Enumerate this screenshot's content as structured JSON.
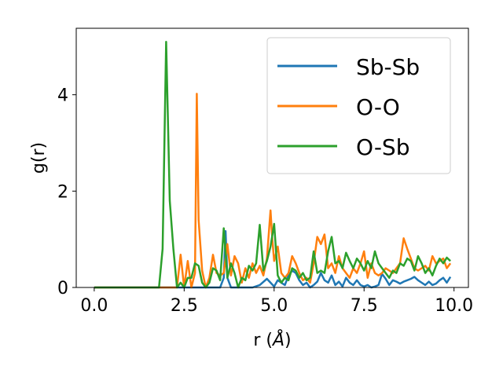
{
  "chart_data": {
    "type": "line",
    "xlabel": "r (",
    "xlabel_unit": "Å",
    "xlabel_close": ")",
    "ylabel": "g(r)",
    "xlim": [
      -0.5,
      10.4
    ],
    "ylim": [
      0,
      5.38
    ],
    "xticks": [
      0.0,
      2.5,
      5.0,
      7.5,
      10.0
    ],
    "xtick_labels": [
      "0.0",
      "2.5",
      "5.0",
      "7.5",
      "10.0"
    ],
    "yticks": [
      0,
      2,
      4
    ],
    "ytick_labels": [
      "0",
      "2",
      "4"
    ],
    "grid": false,
    "legend_position": "top-right",
    "series": [
      {
        "name": "Sb-Sb",
        "color": "#1f77b4",
        "x": [
          0.0,
          1.8,
          2.0,
          2.2,
          2.4,
          2.6,
          2.8,
          3.0,
          3.2,
          3.4,
          3.5,
          3.6,
          3.65,
          3.7,
          3.8,
          3.9,
          4.0,
          4.2,
          4.4,
          4.6,
          4.8,
          4.9,
          5.0,
          5.1,
          5.2,
          5.3,
          5.4,
          5.5,
          5.6,
          5.7,
          5.8,
          5.9,
          6.0,
          6.1,
          6.2,
          6.3,
          6.4,
          6.5,
          6.6,
          6.7,
          6.8,
          6.9,
          7.0,
          7.1,
          7.2,
          7.3,
          7.4,
          7.5,
          7.6,
          7.7,
          7.8,
          7.9,
          8.0,
          8.1,
          8.2,
          8.3,
          8.4,
          8.5,
          8.6,
          8.7,
          8.8,
          8.9,
          9.0,
          9.1,
          9.2,
          9.3,
          9.4,
          9.5,
          9.6,
          9.7,
          9.8,
          9.9
        ],
        "y": [
          0,
          0,
          0,
          0,
          0,
          0,
          0,
          0,
          0,
          0,
          0,
          0.2,
          1.17,
          0.2,
          0,
          0,
          0,
          0,
          0,
          0.05,
          0.18,
          0.1,
          0.02,
          0.15,
          0.1,
          0.05,
          0.25,
          0.35,
          0.3,
          0.15,
          0.05,
          0.1,
          0.0,
          0.05,
          0.12,
          0.3,
          0.15,
          0.1,
          0.25,
          0.05,
          0.12,
          0.02,
          0.2,
          0.1,
          0.05,
          0.15,
          0.05,
          0.02,
          0.05,
          0.0,
          0.02,
          0.05,
          0.28,
          0.18,
          0.05,
          0.15,
          0.12,
          0.08,
          0.12,
          0.15,
          0.18,
          0.22,
          0.15,
          0.1,
          0.05,
          0.12,
          0.05,
          0.08,
          0.15,
          0.2,
          0.1,
          0.22
        ]
      },
      {
        "name": "O-O",
        "color": "#ff7f0e",
        "x": [
          0.0,
          1.8,
          2.0,
          2.2,
          2.3,
          2.4,
          2.5,
          2.6,
          2.7,
          2.8,
          2.85,
          2.9,
          3.0,
          3.1,
          3.2,
          3.3,
          3.4,
          3.5,
          3.6,
          3.7,
          3.8,
          3.9,
          4.0,
          4.1,
          4.2,
          4.3,
          4.4,
          4.5,
          4.6,
          4.7,
          4.8,
          4.9,
          4.95,
          5.0,
          5.1,
          5.2,
          5.3,
          5.4,
          5.5,
          5.6,
          5.7,
          5.8,
          5.9,
          6.0,
          6.1,
          6.2,
          6.3,
          6.4,
          6.5,
          6.6,
          6.7,
          6.8,
          6.9,
          7.0,
          7.1,
          7.2,
          7.3,
          7.4,
          7.5,
          7.6,
          7.7,
          7.8,
          7.9,
          8.0,
          8.1,
          8.2,
          8.3,
          8.4,
          8.5,
          8.6,
          8.7,
          8.8,
          8.9,
          9.0,
          9.1,
          9.2,
          9.3,
          9.4,
          9.5,
          9.6,
          9.7,
          9.8,
          9.9
        ],
        "y": [
          0,
          0,
          0,
          0,
          0,
          0.68,
          0,
          0.55,
          0,
          0.3,
          4.02,
          1.4,
          0.35,
          0,
          0.2,
          0.68,
          0.3,
          0.25,
          0.3,
          0.9,
          0.25,
          0.65,
          0.5,
          0.1,
          0.4,
          0.2,
          0.5,
          0.3,
          0.45,
          0.25,
          0.6,
          1.6,
          1.0,
          0.55,
          0.85,
          0.3,
          0.2,
          0.3,
          0.65,
          0.5,
          0.3,
          0.15,
          0.2,
          0.1,
          0.5,
          1.05,
          0.9,
          1.1,
          0.4,
          0.5,
          0.3,
          0.65,
          0.4,
          0.3,
          0.2,
          0.4,
          0.3,
          0.5,
          0.75,
          0.2,
          0.5,
          0.3,
          0.25,
          0.3,
          0.4,
          0.35,
          0.3,
          0.4,
          0.5,
          1.02,
          0.8,
          0.6,
          0.4,
          0.35,
          0.4,
          0.45,
          0.35,
          0.65,
          0.5,
          0.55,
          0.6,
          0.4,
          0.5
        ]
      },
      {
        "name": "O-Sb",
        "color": "#2ca02c",
        "x": [
          0.0,
          1.8,
          1.9,
          2.0,
          2.1,
          2.2,
          2.3,
          2.4,
          2.5,
          2.6,
          2.7,
          2.8,
          2.9,
          3.0,
          3.1,
          3.2,
          3.3,
          3.4,
          3.5,
          3.6,
          3.7,
          3.8,
          3.9,
          4.0,
          4.1,
          4.2,
          4.3,
          4.4,
          4.5,
          4.6,
          4.7,
          4.8,
          4.9,
          5.0,
          5.1,
          5.2,
          5.3,
          5.4,
          5.5,
          5.6,
          5.7,
          5.8,
          5.9,
          6.0,
          6.1,
          6.2,
          6.3,
          6.4,
          6.5,
          6.6,
          6.7,
          6.8,
          6.9,
          7.0,
          7.1,
          7.2,
          7.3,
          7.4,
          7.5,
          7.6,
          7.7,
          7.8,
          7.9,
          8.0,
          8.1,
          8.2,
          8.3,
          8.4,
          8.5,
          8.6,
          8.7,
          8.8,
          8.9,
          9.0,
          9.1,
          9.2,
          9.3,
          9.4,
          9.5,
          9.6,
          9.7,
          9.8,
          9.9
        ],
        "y": [
          0,
          0,
          0.8,
          5.1,
          1.8,
          0.8,
          0,
          0.1,
          0,
          0.2,
          0.2,
          0.5,
          0.45,
          0.1,
          0,
          0.1,
          0.4,
          0.35,
          0.15,
          1.23,
          0.2,
          0.5,
          0.3,
          0,
          0.2,
          0.15,
          0.45,
          0.35,
          0.5,
          1.3,
          0.35,
          0.55,
          0.85,
          1.32,
          0.25,
          0.1,
          0.2,
          0.15,
          0.4,
          0.35,
          0.2,
          0.3,
          0.15,
          0.2,
          0.75,
          0.3,
          0.35,
          0.3,
          0.75,
          1.05,
          0.5,
          0.55,
          0.4,
          0.72,
          0.55,
          0.4,
          0.6,
          0.5,
          0.35,
          0.55,
          0.4,
          0.75,
          0.5,
          0.4,
          0.3,
          0.2,
          0.35,
          0.3,
          0.5,
          0.45,
          0.6,
          0.55,
          0.35,
          0.65,
          0.5,
          0.3,
          0.4,
          0.25,
          0.45,
          0.6,
          0.5,
          0.62,
          0.55
        ]
      }
    ]
  }
}
